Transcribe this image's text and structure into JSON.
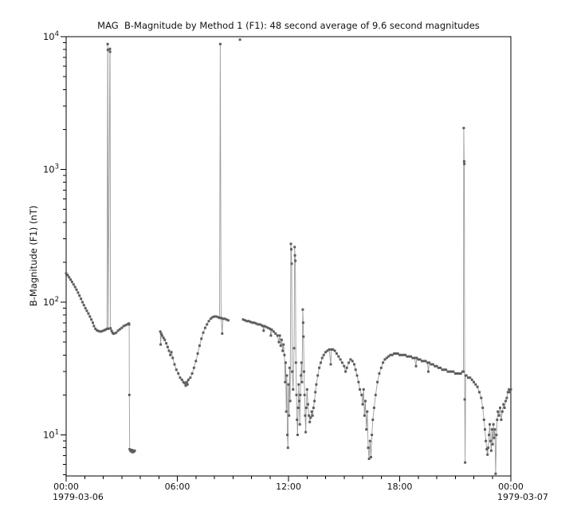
{
  "title": "MAG  B-Magnitude by Method 1 (F1): 48 second average of 9.6 second magnitudes",
  "chart_data": {
    "type": "line",
    "title": "MAG  B-Magnitude by Method 1 (F1): 48 second average of 9.6 second magnitudes",
    "ylabel": "B-Magnitude (F1) (nT)",
    "y_scale": "log",
    "ylim": [
      4.9,
      10000
    ],
    "y_major_ticks": [
      10,
      100,
      1000,
      10000
    ],
    "y_tick_exponents": [
      1,
      2,
      3,
      4
    ],
    "xlim_hours": [
      0,
      24
    ],
    "x_minor_step_hours": 1,
    "x_ticks": [
      {
        "t": 0,
        "label": "00:00",
        "date": "1979-03-06"
      },
      {
        "t": 6,
        "label": "06:00"
      },
      {
        "t": 12,
        "label": "12:00"
      },
      {
        "t": 18,
        "label": "18:00"
      },
      {
        "t": 24,
        "label": "00:00",
        "date": "1979-03-07"
      }
    ],
    "grid": false,
    "legend": "none",
    "colors": {
      "marker": "#5d5d5d",
      "line": "#9c9c9c",
      "axis": "#000000",
      "text": "#111111"
    },
    "units_note": "points are [hours after 1979-03-06 00:00 UT, nT]; null-separated segments = data gaps",
    "segments": [
      [
        [
          0,
          165
        ],
        [
          0.08,
          160
        ],
        [
          0.16,
          154
        ],
        [
          0.24,
          148
        ],
        [
          0.32,
          142
        ],
        [
          0.4,
          136
        ],
        [
          0.48,
          130
        ],
        [
          0.56,
          124
        ],
        [
          0.64,
          118
        ],
        [
          0.72,
          112
        ],
        [
          0.8,
          106
        ],
        [
          0.88,
          100
        ],
        [
          0.96,
          95
        ],
        [
          1.04,
          90
        ],
        [
          1.12,
          86
        ],
        [
          1.2,
          82
        ],
        [
          1.28,
          78
        ],
        [
          1.36,
          74
        ],
        [
          1.44,
          70
        ],
        [
          1.5,
          66
        ],
        [
          1.58,
          63
        ],
        [
          1.66,
          61.5
        ],
        [
          1.75,
          60.5
        ],
        [
          1.85,
          60
        ],
        [
          1.95,
          60.5
        ],
        [
          2.05,
          61.5
        ],
        [
          2.12,
          62
        ],
        [
          2.2,
          63
        ],
        [
          2.24,
          8800
        ],
        [
          2.25,
          7950
        ],
        [
          2.27,
          63
        ],
        [
          2.36,
          8100
        ],
        [
          2.37,
          7700
        ],
        [
          2.39,
          63.5
        ],
        [
          2.45,
          61
        ],
        [
          2.5,
          59
        ],
        [
          2.55,
          58
        ],
        [
          2.6,
          58
        ],
        [
          2.7,
          59
        ],
        [
          2.8,
          61
        ],
        [
          2.9,
          62.5
        ],
        [
          3,
          64
        ],
        [
          3.1,
          66
        ],
        [
          3.2,
          67
        ],
        [
          3.3,
          68
        ],
        [
          3.38,
          69
        ],
        [
          3.4,
          68
        ],
        [
          3.41,
          20
        ],
        [
          3.43,
          7.8
        ],
        [
          3.47,
          7.6
        ],
        [
          3.51,
          7.5
        ],
        [
          3.55,
          7.7
        ],
        [
          3.59,
          7.4
        ],
        [
          3.63,
          7.6
        ],
        [
          3.67,
          7.5
        ],
        [
          3.7,
          7.6
        ]
      ],
      [
        [
          5.08,
          60
        ],
        [
          5.1,
          48
        ],
        [
          5.13,
          58
        ],
        [
          5.18,
          56
        ],
        [
          5.25,
          54
        ],
        [
          5.32,
          52
        ],
        [
          5.4,
          49
        ],
        [
          5.48,
          46
        ],
        [
          5.55,
          43
        ],
        [
          5.62,
          40
        ],
        [
          5.68,
          42
        ],
        [
          5.75,
          38
        ],
        [
          5.85,
          34
        ],
        [
          5.95,
          31
        ],
        [
          6.05,
          29
        ],
        [
          6.15,
          27
        ],
        [
          6.25,
          26
        ],
        [
          6.33,
          25
        ],
        [
          6.4,
          24.5
        ],
        [
          6.45,
          23.5
        ],
        [
          6.5,
          25
        ],
        [
          6.55,
          24
        ],
        [
          6.6,
          26
        ],
        [
          6.7,
          27
        ],
        [
          6.8,
          29
        ],
        [
          6.9,
          32
        ],
        [
          7,
          36
        ],
        [
          7.1,
          41
        ],
        [
          7.2,
          47
        ],
        [
          7.3,
          53
        ],
        [
          7.4,
          59
        ],
        [
          7.5,
          64
        ],
        [
          7.6,
          68
        ],
        [
          7.7,
          72
        ],
        [
          7.8,
          75
        ],
        [
          7.9,
          77
        ],
        [
          8,
          78
        ],
        [
          8.1,
          78
        ],
        [
          8.2,
          77
        ],
        [
          8.28,
          76
        ],
        [
          8.32,
          8800
        ],
        [
          8.36,
          76
        ],
        [
          8.42,
          58
        ],
        [
          8.46,
          75
        ],
        [
          8.55,
          75
        ],
        [
          8.65,
          74
        ],
        [
          8.75,
          73
        ]
      ],
      [
        [
          9.38,
          9500
        ]
      ],
      [
        [
          9.55,
          74
        ],
        [
          9.65,
          73
        ],
        [
          9.75,
          72
        ],
        [
          9.85,
          72
        ],
        [
          9.95,
          71
        ],
        [
          10.05,
          70
        ],
        [
          10.15,
          70
        ],
        [
          10.25,
          69
        ],
        [
          10.35,
          68
        ],
        [
          10.45,
          68
        ],
        [
          10.55,
          67
        ],
        [
          10.62,
          66
        ],
        [
          10.66,
          61
        ],
        [
          10.7,
          66
        ],
        [
          10.8,
          65
        ],
        [
          10.9,
          64
        ],
        [
          11,
          63
        ],
        [
          11.05,
          56
        ],
        [
          11.1,
          62
        ],
        [
          11.2,
          60
        ],
        [
          11.3,
          58
        ],
        [
          11.4,
          56
        ],
        [
          11.48,
          50
        ],
        [
          11.53,
          56
        ],
        [
          11.58,
          47
        ],
        [
          11.63,
          52
        ],
        [
          11.68,
          43
        ],
        [
          11.73,
          48
        ],
        [
          11.78,
          40
        ],
        [
          11.82,
          25
        ],
        [
          11.85,
          35
        ],
        [
          11.88,
          15
        ],
        [
          11.91,
          28
        ],
        [
          11.94,
          10
        ],
        [
          11.97,
          8
        ],
        [
          12,
          24
        ],
        [
          12.03,
          14
        ],
        [
          12.06,
          32
        ],
        [
          12.09,
          18
        ],
        [
          12.13,
          275
        ],
        [
          12.15,
          250
        ],
        [
          12.17,
          195
        ],
        [
          12.2,
          30
        ],
        [
          12.25,
          22
        ],
        [
          12.3,
          45
        ],
        [
          12.33,
          260
        ],
        [
          12.35,
          225
        ],
        [
          12.37,
          205
        ],
        [
          12.4,
          35
        ],
        [
          12.43,
          20
        ],
        [
          12.46,
          13
        ],
        [
          12.49,
          10
        ],
        [
          12.52,
          16
        ],
        [
          12.55,
          24
        ],
        [
          12.58,
          18
        ],
        [
          12.61,
          12
        ],
        [
          12.64,
          20
        ],
        [
          12.67,
          28
        ],
        [
          12.7,
          35
        ],
        [
          12.73,
          25
        ],
        [
          12.77,
          88
        ],
        [
          12.79,
          70
        ],
        [
          12.81,
          55
        ],
        [
          12.84,
          30
        ],
        [
          12.87,
          20
        ],
        [
          12.9,
          14
        ],
        [
          12.93,
          10.5
        ],
        [
          12.96,
          16
        ],
        [
          13,
          22
        ],
        [
          13.05,
          17
        ],
        [
          13.1,
          14
        ],
        [
          13.15,
          12.5
        ],
        [
          13.2,
          13.5
        ],
        [
          13.25,
          15
        ],
        [
          13.3,
          14
        ],
        [
          13.35,
          16
        ],
        [
          13.4,
          18
        ],
        [
          13.45,
          21
        ],
        [
          13.5,
          24
        ],
        [
          13.58,
          28
        ],
        [
          13.66,
          32
        ],
        [
          13.74,
          35
        ],
        [
          13.82,
          38
        ],
        [
          13.9,
          40
        ],
        [
          14,
          42
        ],
        [
          14.1,
          43
        ],
        [
          14.2,
          44
        ],
        [
          14.28,
          34
        ],
        [
          14.32,
          44
        ],
        [
          14.4,
          44
        ],
        [
          14.5,
          43
        ],
        [
          14.6,
          41
        ],
        [
          14.7,
          39
        ],
        [
          14.8,
          37
        ],
        [
          14.9,
          35
        ],
        [
          15,
          33
        ],
        [
          15.08,
          30
        ],
        [
          15.15,
          32
        ],
        [
          15.25,
          35
        ],
        [
          15.35,
          37
        ],
        [
          15.45,
          36
        ],
        [
          15.55,
          34
        ],
        [
          15.62,
          31
        ],
        [
          15.7,
          28
        ],
        [
          15.78,
          25
        ],
        [
          15.85,
          22
        ],
        [
          15.95,
          20
        ],
        [
          16,
          17
        ],
        [
          16.05,
          22
        ],
        [
          16.1,
          14
        ],
        [
          16.15,
          18
        ],
        [
          16.2,
          11
        ],
        [
          16.25,
          15
        ],
        [
          16.3,
          8
        ],
        [
          16.35,
          6.6
        ],
        [
          16.4,
          9
        ],
        [
          16.45,
          6.8
        ],
        [
          16.5,
          10
        ],
        [
          16.55,
          13
        ],
        [
          16.62,
          16
        ],
        [
          16.7,
          20
        ],
        [
          16.8,
          25
        ],
        [
          16.9,
          29
        ],
        [
          17,
          32
        ],
        [
          17.1,
          35
        ],
        [
          17.2,
          37
        ],
        [
          17.3,
          38
        ],
        [
          17.4,
          39
        ],
        [
          17.5,
          40
        ],
        [
          17.6,
          40
        ],
        [
          17.7,
          41
        ],
        [
          17.8,
          41
        ],
        [
          17.9,
          41
        ],
        [
          18,
          40
        ],
        [
          18.1,
          40
        ],
        [
          18.2,
          40
        ],
        [
          18.3,
          40
        ],
        [
          18.4,
          39
        ],
        [
          18.5,
          39
        ],
        [
          18.6,
          39
        ],
        [
          18.7,
          38
        ],
        [
          18.8,
          38
        ],
        [
          18.88,
          33
        ],
        [
          18.92,
          38
        ],
        [
          19,
          37
        ],
        [
          19.1,
          37
        ],
        [
          19.2,
          36
        ],
        [
          19.3,
          36
        ],
        [
          19.4,
          36
        ],
        [
          19.5,
          35
        ],
        [
          19.55,
          30
        ],
        [
          19.6,
          35
        ],
        [
          19.7,
          34
        ],
        [
          19.8,
          34
        ],
        [
          19.9,
          33
        ],
        [
          20,
          33
        ],
        [
          20.1,
          32
        ],
        [
          20.2,
          32
        ],
        [
          20.3,
          31
        ],
        [
          20.4,
          31
        ],
        [
          20.5,
          31
        ],
        [
          20.6,
          30
        ],
        [
          20.7,
          30
        ],
        [
          20.8,
          30
        ],
        [
          20.9,
          30
        ],
        [
          21,
          29
        ],
        [
          21.1,
          29
        ],
        [
          21.2,
          29
        ],
        [
          21.3,
          29
        ],
        [
          21.4,
          30
        ],
        [
          21.44,
          30
        ],
        [
          21.46,
          2050
        ],
        [
          21.48,
          1150
        ],
        [
          21.49,
          1100
        ],
        [
          21.51,
          18.5
        ],
        [
          21.53,
          6.2
        ],
        [
          21.56,
          28
        ],
        [
          21.6,
          28
        ],
        [
          21.7,
          27
        ],
        [
          21.8,
          27
        ],
        [
          21.9,
          26
        ],
        [
          22,
          25
        ],
        [
          22.1,
          24
        ],
        [
          22.2,
          23
        ],
        [
          22.3,
          21
        ],
        [
          22.4,
          19
        ],
        [
          22.48,
          16
        ],
        [
          22.55,
          13
        ],
        [
          22.6,
          11
        ],
        [
          22.65,
          9
        ],
        [
          22.7,
          7.8
        ],
        [
          22.74,
          7.1
        ],
        [
          22.78,
          8
        ],
        [
          22.82,
          10
        ],
        [
          22.86,
          12
        ],
        [
          22.9,
          9
        ],
        [
          22.94,
          7.6
        ],
        [
          22.98,
          11
        ],
        [
          23.02,
          8.5
        ],
        [
          23.06,
          12
        ],
        [
          23.1,
          9.5
        ],
        [
          23.14,
          11
        ],
        [
          23.18,
          5.1
        ],
        [
          23.22,
          10
        ],
        [
          23.26,
          13
        ],
        [
          23.3,
          15
        ],
        [
          23.36,
          14
        ],
        [
          23.42,
          16
        ],
        [
          23.48,
          13
        ],
        [
          23.54,
          15
        ],
        [
          23.6,
          17
        ],
        [
          23.66,
          16
        ],
        [
          23.72,
          18
        ],
        [
          23.78,
          19
        ],
        [
          23.84,
          21
        ],
        [
          23.9,
          22
        ],
        [
          23.95,
          21
        ],
        [
          24,
          22
        ]
      ]
    ]
  }
}
